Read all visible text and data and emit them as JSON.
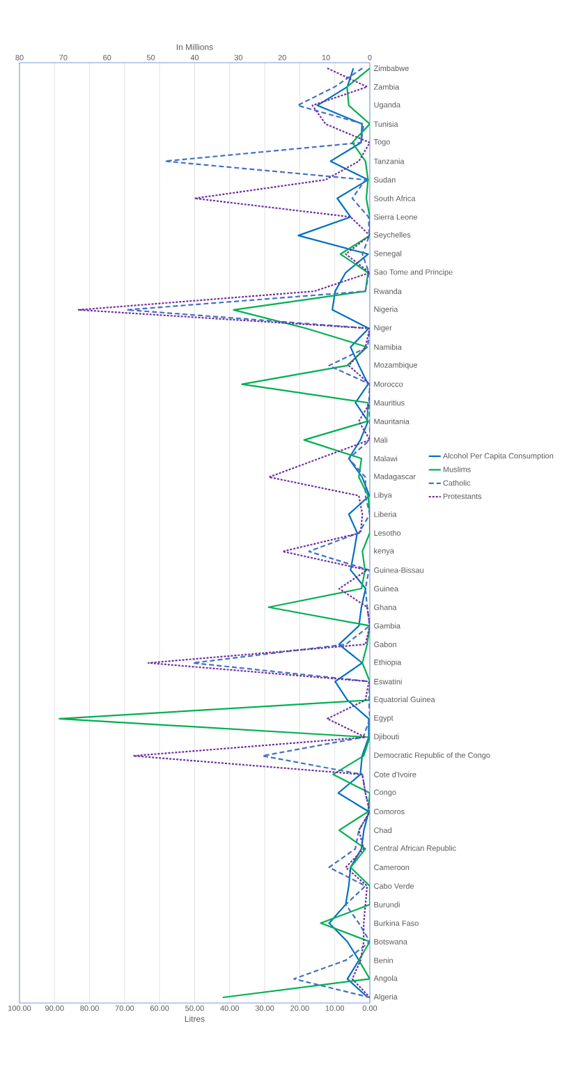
{
  "chart_data": {
    "type": "line",
    "orientation": "horizontal",
    "xlabel": "Litres",
    "x2label": "In Millions",
    "categories": [
      "Zimbabwe",
      "Zambia",
      "Uganda",
      "Tunisia",
      "Togo",
      "Tanzania",
      "Sudan",
      "South Africa",
      "Sierra Leone",
      "Seychelles",
      "Senegal",
      "Sao Tome and Principe",
      "Rwanda",
      "Nigeria",
      "Niger",
      "Namibia",
      "Mozambique",
      "Morocco",
      "Mauritius",
      "Mauritania",
      "Mali",
      "Malawi",
      "Madagascar",
      "Libya",
      "Liberia",
      "Lesotho",
      "kenya",
      "Guinea-Bissau",
      "Guinea",
      "Ghana",
      "Gambia",
      "Gabon",
      "Ethiopia",
      "Eswatini",
      "Equatorial Guinea",
      "Egypt",
      "Djibouti",
      "Democratic Republic of the Congo",
      "Cote d'Ivoire",
      "Congo",
      "Comoros",
      "Chad",
      "Central African Republic",
      "Cameroon",
      "Cabo Verde",
      "Burundi",
      "Burkina Faso",
      "Botswana",
      "Benin",
      "Angola",
      "Algeria"
    ],
    "series": [
      {
        "name": "Alcohol Per Capita Consumption",
        "color": "#0070c0",
        "line_style": "solid",
        "values": [
          4.7,
          6.4,
          15.0,
          2.2,
          2.5,
          11.2,
          0.5,
          9.3,
          5.5,
          20.4,
          0.5,
          6.9,
          9.9,
          10.7,
          0.3,
          5.5,
          3.1,
          0.5,
          4.1,
          0.5,
          2.7,
          6.0,
          2.2,
          0.1,
          6.0,
          3.6,
          4.5,
          5.5,
          1.2,
          2.4,
          3.1,
          8.8,
          2.2,
          9.9,
          6.4,
          0.3,
          0.3,
          2.2,
          2.7,
          9.0,
          0.3,
          1.7,
          2.4,
          5.5,
          6.0,
          6.9,
          11.6,
          6.4,
          3.1,
          6.4,
          0.6
        ]
      },
      {
        "name": "Muslims",
        "color": "#00b050",
        "line_style": "solid",
        "axis": "x2",
        "values": [
          0,
          5.2,
          4.8,
          0,
          4.0,
          1.0,
          0.4,
          0.8,
          0,
          0,
          6.7,
          0.4,
          1.0,
          31.1,
          14.5,
          0.6,
          5.2,
          29.2,
          0.4,
          0.6,
          15.0,
          1.9,
          2.5,
          0.4,
          0,
          0,
          1.7,
          1.1,
          1.9,
          23.1,
          0,
          0.6,
          1.7,
          0,
          0,
          70.9,
          0,
          1.4,
          8.4,
          0,
          0.4,
          7.0,
          1.0,
          4.4,
          0,
          0,
          11.2,
          0,
          2.5,
          0,
          33.6
        ]
      },
      {
        "name": "Catholic",
        "color": "#4472c4",
        "line_style": "dashed",
        "axis": "x2",
        "values": [
          1.7,
          8.0,
          16.5,
          1.4,
          2.0,
          46.8,
          1.0,
          4.0,
          0.3,
          0.1,
          1.7,
          0.2,
          1.0,
          55.5,
          0,
          0.5,
          9.3,
          0,
          0.2,
          0,
          0,
          4.8,
          1.0,
          1.0,
          0,
          2.5,
          13.9,
          0.2,
          1.0,
          0.6,
          0,
          5.5,
          40.4,
          0,
          0.2,
          0,
          1.5,
          24.5,
          1.7,
          1.0,
          0,
          2.5,
          3.3,
          9.3,
          1.0,
          5.5,
          2.5,
          0,
          5.5,
          17.3,
          0
        ]
      },
      {
        "name": "Protestants",
        "color": "#7030a0",
        "line_style": "dotted",
        "axis": "x2",
        "values": [
          9.7,
          0.6,
          13.1,
          10.1,
          0,
          2.5,
          10.1,
          40.0,
          4.4,
          0,
          5.5,
          0,
          12.7,
          66.5,
          0,
          1.0,
          4.8,
          0,
          0,
          2.5,
          0,
          11.6,
          23.0,
          2.5,
          1.7,
          2.1,
          19.9,
          0.6,
          7.0,
          0.6,
          0,
          1.0,
          50.6,
          0.2,
          1.0,
          9.7,
          1.0,
          54.0,
          1.7,
          1.0,
          0,
          2.5,
          1.4,
          5.5,
          0.6,
          1.0,
          1.4,
          1.4,
          2.1,
          4.0,
          0
        ]
      }
    ],
    "xlim": [
      100,
      0
    ],
    "xticks": [
      {
        "value": 100,
        "label": "100.00"
      },
      {
        "value": 90,
        "label": "90.00"
      },
      {
        "value": 80,
        "label": "80.00"
      },
      {
        "value": 70,
        "label": "70.00"
      },
      {
        "value": 60,
        "label": "60.00"
      },
      {
        "value": 50,
        "label": "50.00"
      },
      {
        "value": 40,
        "label": "40.00"
      },
      {
        "value": 30,
        "label": "30.00"
      },
      {
        "value": 20,
        "label": "20.00"
      },
      {
        "value": 10,
        "label": "10.00"
      },
      {
        "value": 0,
        "label": "0.00"
      }
    ],
    "x2lim": [
      80,
      0
    ],
    "x2ticks": [
      80,
      70,
      60,
      50,
      40,
      30,
      20,
      10,
      0
    ],
    "grid": "x",
    "legend": "right"
  }
}
